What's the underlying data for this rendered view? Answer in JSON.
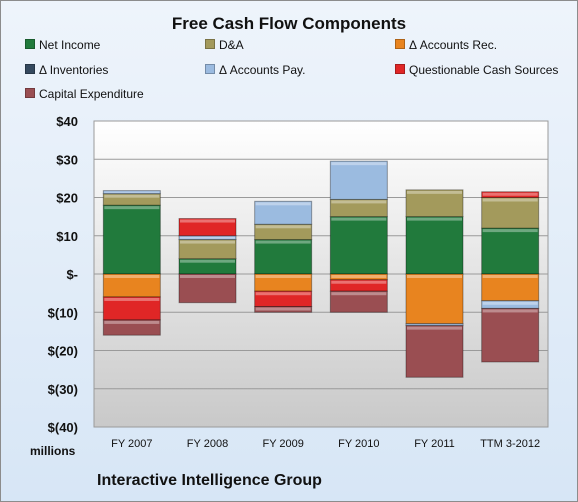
{
  "chart_data": {
    "type": "bar",
    "stacked": true,
    "title": "Free Cash Flow Components",
    "categories": [
      "FY 2007",
      "FY 2008",
      "FY 2009",
      "FY 2010",
      "FY 2011",
      "TTM 3-2012"
    ],
    "ylim": [
      -40,
      40
    ],
    "yticks": [
      "$40",
      "$30",
      "$20",
      "$10",
      "$-",
      "$(10)",
      "$(20)",
      "$(30)",
      "$(40)"
    ],
    "ytick_values": [
      40,
      30,
      20,
      10,
      0,
      -10,
      -20,
      -30,
      -40
    ],
    "unit_label": "millions",
    "grid": true,
    "legend_position": "top",
    "series": [
      {
        "name": "Net Income",
        "color": "#217a3c",
        "values": [
          18,
          4,
          9,
          15,
          15,
          12
        ]
      },
      {
        "name": "D&A",
        "color": "#a39a5c",
        "values": [
          3,
          5,
          4,
          4.5,
          7,
          8
        ]
      },
      {
        "name": "Δ Accounts Rec.",
        "color": "#e8841f",
        "values": [
          -6,
          0,
          -4.5,
          -1.5,
          -13,
          -7
        ]
      },
      {
        "name": "Δ Inventories",
        "color": "#34495e",
        "values": [
          0,
          0,
          0,
          0,
          0,
          0
        ]
      },
      {
        "name": "Δ Accounts Pay.",
        "color": "#9bbbe0",
        "values": [
          0.8,
          1,
          6,
          10,
          -0.5,
          -2
        ]
      },
      {
        "name": "Questionable Cash Sources",
        "color": "#e02626",
        "values": [
          -6,
          4.5,
          -4,
          -3,
          0,
          1.5
        ]
      },
      {
        "name": "Capital Expenditure",
        "color": "#9a4e52",
        "values": [
          -4,
          -7.5,
          -1.5,
          -5.5,
          -13.5,
          -14
        ]
      }
    ]
  },
  "company": "Interactive Intelligence Group"
}
